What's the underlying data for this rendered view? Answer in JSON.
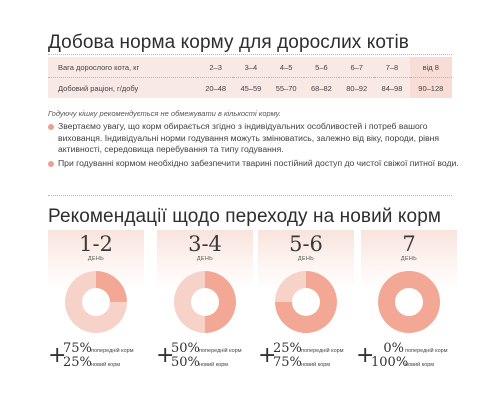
{
  "title_daily": "Добова норма корму для дорослих котів",
  "table": {
    "weight_label": "Вага дорослого кота, кг",
    "weights": [
      "2–3",
      "3–4",
      "4–5",
      "5–6",
      "6–7",
      "7–8",
      "від 8"
    ],
    "ration_label": "Добовий раціон, г/добу",
    "rations": [
      "20–48",
      "45–59",
      "55–70",
      "68–82",
      "80–92",
      "84–98",
      "90–128"
    ]
  },
  "note": "Годуючу кішку рекомендується не обмежувати в кількості корму.",
  "bullets": [
    "Звертаємо увагу, що корм обирається згідно з індивідуальних особливостей і потреб вашого вихованця. Індивідуальні норми годування можуть змінюватись, залежно від віку, породи, рівня активності, середовища перебування та типу годування.",
    "При годуванні кормом необхідно забезпечити тварині постійний доступ до чистої свіжої питної води."
  ],
  "title_transition": "Рекомендації щодо переходу на новий корм",
  "transition": [
    {
      "days": "1-2",
      "day_label": "ДЕНЬ",
      "old_pct": "75%",
      "old_label": "попередній корм",
      "new_pct": "25%",
      "new_label": "новий корм",
      "old_share": 0.75,
      "new_share": 0.25
    },
    {
      "days": "3-4",
      "day_label": "ДЕНЬ",
      "old_pct": "50%",
      "old_label": "попередній корм",
      "new_pct": "50%",
      "new_label": "новий корм",
      "old_share": 0.5,
      "new_share": 0.5
    },
    {
      "days": "5-6",
      "day_label": "ДЕНЬ",
      "old_pct": "25%",
      "old_label": "попередній корм",
      "new_pct": "75%",
      "new_label": "новий корм",
      "old_share": 0.25,
      "new_share": 0.75
    },
    {
      "days": "7",
      "day_label": "ДЕНЬ",
      "old_pct": "0%",
      "old_label": "попередній корм",
      "new_pct": "100%",
      "new_label": "новий корм",
      "old_share": 0,
      "new_share": 1
    }
  ],
  "colors": {
    "old_food": "#f7d2c8",
    "new_food": "#f2a895",
    "accent": "#ef9f8d",
    "table_bg": "#f9e9e5"
  }
}
